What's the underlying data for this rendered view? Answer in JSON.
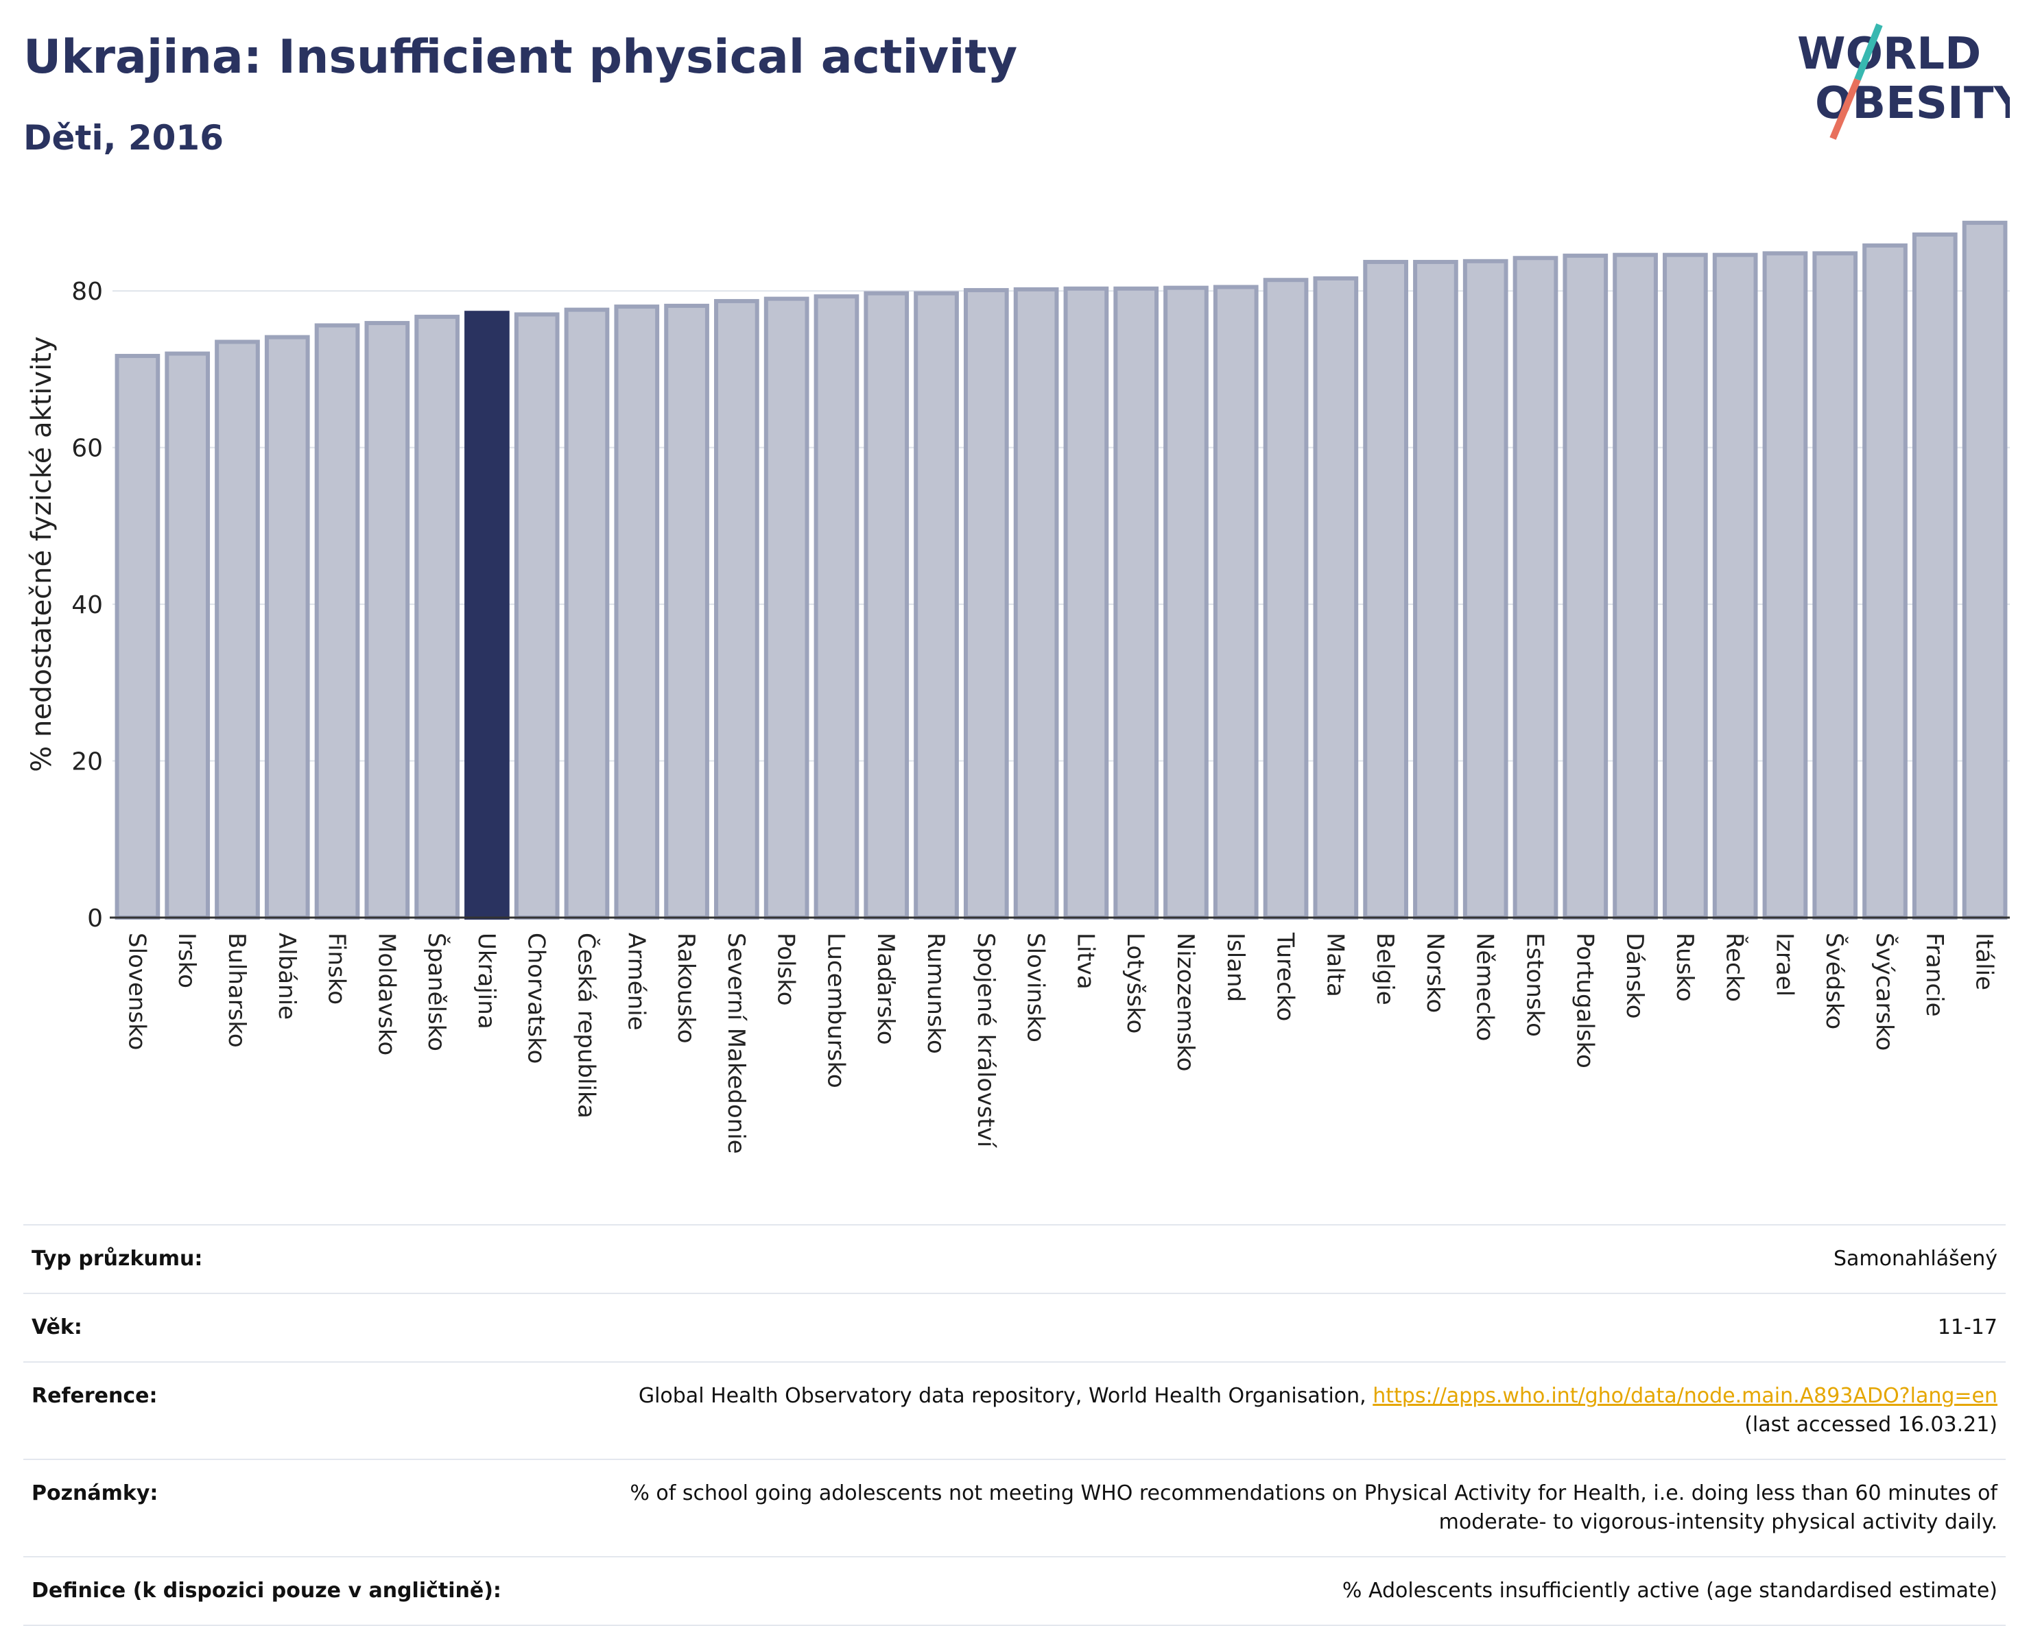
{
  "header": {
    "title": "Ukrajina: Insufficient physical activity",
    "subtitle": "Děti, 2016",
    "logo_line1": "WORLD",
    "logo_line2": "OBESITY"
  },
  "colors": {
    "bar": "#bfc3d1",
    "bar_border": "#9ca3bb",
    "highlight": "#2a3360",
    "logo_text": "#2a3360",
    "logo_teal": "#38b8b0",
    "logo_coral": "#e8705c",
    "link": "#e5a600"
  },
  "chart_data": {
    "type": "bar",
    "ylabel": "% nedostatečné fyzické aktivity",
    "ylim": [
      0,
      90
    ],
    "yticks": [
      0,
      20,
      40,
      60,
      80
    ],
    "grid": true,
    "highlight": "Ukrajina",
    "categories": [
      "Slovensko",
      "Irsko",
      "Bulharsko",
      "Albánie",
      "Finsko",
      "Moldavsko",
      "Španělsko",
      "Ukrajina",
      "Chorvatsko",
      "Česká republika",
      "Arménie",
      "Rakousko",
      "Severní Makedonie",
      "Polsko",
      "Lucembursko",
      "Maďarsko",
      "Rumunsko",
      "Spojené království",
      "Slovinsko",
      "Litva",
      "Lotyšsko",
      "Nizozemsko",
      "Island",
      "Turecko",
      "Malta",
      "Belgie",
      "Norsko",
      "Německo",
      "Estonsko",
      "Portugalsko",
      "Dánsko",
      "Rusko",
      "Řecko",
      "Izrael",
      "Švédsko",
      "Švýcarsko",
      "Francie",
      "Itálie"
    ],
    "values": [
      71.7,
      72.0,
      73.5,
      74.1,
      75.6,
      75.9,
      76.7,
      77.2,
      77.0,
      77.6,
      78.0,
      78.1,
      78.7,
      79.0,
      79.3,
      79.7,
      79.7,
      80.1,
      80.2,
      80.3,
      80.3,
      80.4,
      80.5,
      81.4,
      81.6,
      83.7,
      83.7,
      83.8,
      84.2,
      84.5,
      84.6,
      84.6,
      84.6,
      84.8,
      84.8,
      85.8,
      87.2,
      88.7
    ]
  },
  "info_table": [
    {
      "label": "Typ průzkumu:",
      "value": "Samonahlášený"
    },
    {
      "label": "Věk:",
      "value": "11-17"
    },
    {
      "label": "Reference:",
      "value": "Global Health Observatory data repository, World Health Organisation,",
      "link": "https://apps.who.int/gho/data/node.main.A893ADO?lang=en",
      "value2": "(last accessed 16.03.21)"
    },
    {
      "label": "Poznámky:",
      "value": "% of school going adolescents not meeting WHO recommendations on Physical Activity for Health, i.e. doing less than 60 minutes of",
      "value2": "moderate- to vigorous-intensity physical activity daily."
    },
    {
      "label": "Definice (k dispozici pouze v angličtině):",
      "value": "% Adolescents insufficiently active (age standardised estimate)"
    }
  ]
}
